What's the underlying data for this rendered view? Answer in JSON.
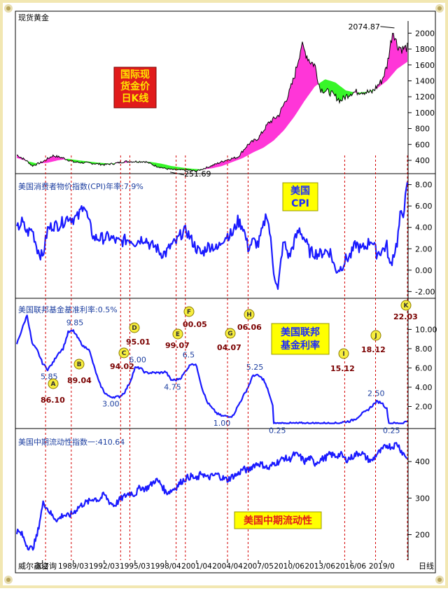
{
  "colors": {
    "background": "#ffffff",
    "price_line": "#000000",
    "above_fill": "#ff2bd6",
    "below_fill": "#2cf51c",
    "series_line": "#1a1aff",
    "vline": "#d40000",
    "marker_fill": "#f7ee3e",
    "annotation_red": "#7a0000",
    "annotation_blue": "#1d3fa0",
    "box_red_bg": "#e11b1b",
    "box_red_text": "#ffe600",
    "box_yellow_bg": "#ffff00",
    "box_yellow_text": "#1a2aff",
    "frame_yellow": "#f2e7b2"
  },
  "header": {
    "title": "现货黄金"
  },
  "footer": {
    "source": "威尔鑫咨询",
    "interval": "日线"
  },
  "chart_data": [
    {
      "type": "line",
      "title": "",
      "legend_box": "国际现货金价日K线",
      "legend_box_lines": [
        "国际现",
        "货金价",
        "日K线"
      ],
      "ylim": [
        250,
        2100
      ],
      "yticks": [
        400,
        600,
        800,
        1000,
        1200,
        1400,
        1600,
        1800,
        2000
      ],
      "series": [
        {
          "x": [
            1984,
            1985,
            1985.5,
            1986.5,
            1987.5,
            1988.5,
            1989.5,
            1990.5,
            1991.5,
            1992.5,
            1993.5,
            1994.5,
            1995.5,
            1996.5,
            1997.5,
            1998.5,
            1999.5,
            2000.5,
            2001.5,
            2002.5,
            2003.5,
            2004.5,
            2005.5,
            2006.5,
            2007.5,
            2008.5,
            2009.5,
            2010.5,
            2011.0,
            2011.7,
            2012.5,
            2013.0,
            2013.5,
            2014.5,
            2015.5,
            2016.5,
            2017.5,
            2018.5,
            2019.5,
            2020.0,
            2020.6,
            2021.0,
            2021.5,
            2022.0
          ],
          "y": [
            470,
            390,
            330,
            380,
            460,
            430,
            380,
            370,
            360,
            345,
            360,
            385,
            385,
            385,
            330,
            295,
            278,
            280,
            265,
            310,
            360,
            410,
            440,
            600,
            680,
            870,
            970,
            1250,
            1450,
            1850,
            1650,
            1600,
            1300,
            1250,
            1150,
            1250,
            1270,
            1250,
            1400,
            1580,
            2050,
            1850,
            1800,
            1820
          ]
        },
        {
          "name": "",
          "x": [
            1984,
            1985,
            1986,
            1987,
            1988,
            1989,
            1990,
            1991,
            1992,
            1993,
            1994,
            1995,
            1996,
            1997,
            1998,
            1999,
            2000,
            2001,
            2002,
            2003,
            2004,
            2005,
            2006,
            2007,
            2008,
            2009,
            2010,
            2011,
            2012,
            2013,
            2014,
            2015,
            2016,
            2017,
            2018,
            2019,
            2020,
            2021,
            2022
          ],
          "y": [
            430,
            390,
            360,
            370,
            400,
            420,
            400,
            385,
            370,
            360,
            365,
            375,
            385,
            380,
            360,
            330,
            310,
            295,
            285,
            300,
            330,
            380,
            430,
            500,
            560,
            650,
            780,
            950,
            1150,
            1330,
            1420,
            1380,
            1280,
            1250,
            1260,
            1300,
            1400,
            1550,
            1640
          ]
        }
      ],
      "annotations": [
        {
          "label": "2074.87",
          "x": 2020.6,
          "y": 2074.87
        },
        {
          "label": "251.69",
          "x": 1999.6,
          "y": 251.69
        }
      ]
    },
    {
      "type": "line",
      "title": "美国消费者物价指数(CPI)年率:7.9%",
      "legend_box": "美国CPI",
      "legend_box_lines": [
        "美国",
        "CPI"
      ],
      "ylim": [
        -2.5,
        8.5
      ],
      "yticks": [
        -2.0,
        0.0,
        2.0,
        4.0,
        6.0,
        8.0
      ],
      "ytick_labels": [
        "-2.00",
        "0.00",
        "2.00",
        "4.00",
        "6.00",
        "8.00"
      ],
      "series": [
        {
          "x": [
            1984,
            1984.5,
            1985,
            1985.5,
            1986,
            1986.5,
            1987,
            1987.5,
            1988,
            1988.5,
            1989,
            1989.5,
            1990,
            1990.5,
            1991,
            1991.5,
            1992,
            1992.5,
            1993,
            1993.5,
            1994,
            1994.5,
            1995,
            1995.5,
            1996,
            1996.5,
            1997,
            1997.5,
            1998,
            1998.5,
            1999,
            1999.5,
            2000,
            2000.5,
            2001,
            2001.5,
            2002,
            2002.5,
            2003,
            2003.5,
            2004,
            2004.5,
            2005,
            2005.5,
            2006,
            2006.5,
            2007,
            2007.5,
            2008,
            2008.3,
            2008.6,
            2009,
            2009.4,
            2009.8,
            2010,
            2010.5,
            2011,
            2011.5,
            2012,
            2012.5,
            2013,
            2013.5,
            2014,
            2014.5,
            2015,
            2015.5,
            2016,
            2016.5,
            2017,
            2017.5,
            2018,
            2018.5,
            2019,
            2019.5,
            2020,
            2020.3,
            2020.6,
            2021,
            2021.3,
            2021.6,
            2022
          ],
          "y": [
            3.8,
            4.5,
            3.5,
            3.8,
            2.0,
            1.2,
            3.8,
            4.2,
            4.2,
            4.5,
            5.0,
            4.8,
            5.0,
            6.3,
            4.5,
            3.0,
            3.0,
            3.0,
            3.1,
            2.8,
            2.6,
            2.8,
            2.9,
            2.6,
            2.9,
            3.0,
            2.3,
            2.2,
            1.6,
            1.6,
            2.3,
            2.6,
            3.4,
            3.7,
            2.8,
            2.0,
            1.5,
            2.2,
            2.3,
            1.9,
            2.9,
            3.3,
            3.4,
            4.6,
            4.1,
            2.1,
            2.7,
            2.4,
            4.1,
            5.4,
            3.6,
            0.0,
            -2.0,
            1.8,
            2.6,
            1.2,
            2.7,
            3.8,
            2.9,
            1.7,
            1.6,
            1.5,
            1.8,
            1.7,
            0.0,
            0.2,
            1.0,
            1.4,
            2.5,
            1.9,
            2.3,
            2.9,
            1.6,
            1.8,
            2.3,
            0.3,
            1.3,
            2.6,
            5.0,
            5.4,
            7.9
          ]
        }
      ]
    },
    {
      "type": "line",
      "title": "美国联邦基金基准利率:0.5%",
      "legend_box": "美国联邦基金利率",
      "legend_box_lines": [
        "美国联邦",
        "基金利率"
      ],
      "ylim": [
        0,
        12.5
      ],
      "yticks": [
        2.0,
        4.0,
        6.0,
        8.0,
        10.0
      ],
      "ytick_labels": [
        "2.00",
        "4.00",
        "6.00",
        "8.00",
        "10.00"
      ],
      "series": [
        {
          "x": [
            1984,
            1984.6,
            1985,
            1985.5,
            1986,
            1986.5,
            1987,
            1987.5,
            1988,
            1988.5,
            1989.0,
            1989.5,
            1990,
            1990.5,
            1991,
            1991.5,
            1992,
            1992.5,
            1993,
            1993.5,
            1994,
            1994.5,
            1995.0,
            1995.5,
            1996,
            1996.5,
            1997,
            1997.5,
            1998,
            1998.5,
            1999,
            1999.5,
            2000,
            2000.5,
            2001,
            2001.5,
            2002,
            2002.5,
            2003,
            2003.5,
            2004,
            2004.5,
            2005,
            2005.5,
            2006.5,
            2007,
            2007.5,
            2008,
            2008.5,
            2008.9,
            2009,
            2010,
            2011,
            2012,
            2013,
            2014,
            2015,
            2015.9,
            2016.5,
            2017,
            2017.5,
            2018,
            2018.5,
            2019,
            2019.5,
            2020.0,
            2020.2,
            2021,
            2021.5,
            2022
          ],
          "y": [
            8.5,
            10.3,
            11.5,
            8.5,
            7.8,
            6.5,
            5.85,
            6.5,
            7.5,
            8.0,
            9.7,
            9.85,
            9.0,
            8.2,
            8.0,
            6.2,
            4.5,
            3.5,
            3.0,
            3.0,
            3.0,
            3.5,
            4.5,
            6.0,
            6.0,
            5.5,
            5.5,
            5.5,
            5.5,
            5.6,
            4.75,
            4.75,
            5.0,
            5.8,
            6.5,
            6.2,
            4.0,
            2.5,
            1.8,
            1.25,
            1.0,
            1.0,
            1.0,
            2.0,
            4.0,
            5.25,
            5.2,
            4.8,
            3.5,
            2.0,
            0.25,
            0.25,
            0.25,
            0.25,
            0.25,
            0.25,
            0.25,
            0.4,
            0.5,
            0.75,
            1.2,
            1.5,
            2.0,
            2.5,
            2.4,
            1.75,
            0.25,
            0.25,
            0.25,
            0.5
          ]
        }
      ],
      "annotations": [
        {
          "label": "9.85",
          "x": 1989.5,
          "y": 9.85
        },
        {
          "label": "5.85",
          "x": 1987.0,
          "y": 5.85
        },
        {
          "label": "3.00",
          "x": 1993.0,
          "y": 3.0
        },
        {
          "label": "6.00",
          "x": 1995.6,
          "y": 6.0
        },
        {
          "label": "4.75",
          "x": 1999.0,
          "y": 4.75
        },
        {
          "label": "6.5",
          "x": 2000.8,
          "y": 6.5
        },
        {
          "label": "1.00",
          "x": 2003.8,
          "y": 1.0
        },
        {
          "label": "5.25",
          "x": 2007.0,
          "y": 5.25
        },
        {
          "label": "0.25",
          "x": 2009.2,
          "y": 0.25
        },
        {
          "label": "2.50",
          "x": 2018.8,
          "y": 2.5
        },
        {
          "label": "0.25",
          "x": 2020.3,
          "y": 0.25
        }
      ]
    },
    {
      "type": "line",
      "title": "美国中期流动性指数一:410.64",
      "legend_box": "美国中期流动性",
      "ylim": [
        130,
        475
      ],
      "yticks": [
        200,
        300,
        400
      ],
      "series": [
        {
          "x": [
            1984,
            1984.5,
            1985,
            1985.5,
            1986,
            1986.3,
            1986.6,
            1987,
            1987.5,
            1988,
            1988.5,
            1989,
            1989.5,
            1990,
            1990.5,
            1991,
            1991.5,
            1992,
            1992.5,
            1993,
            1993.5,
            1994,
            1994.5,
            1995,
            1995.5,
            1996,
            1996.5,
            1997,
            1997.5,
            1998,
            1998.5,
            1999,
            1999.5,
            2000,
            2000.5,
            2001,
            2001.5,
            2002,
            2002.5,
            2003,
            2003.5,
            2004,
            2004.5,
            2005,
            2005.5,
            2006,
            2006.5,
            2007,
            2007.5,
            2008,
            2008.5,
            2009,
            2009.5,
            2010,
            2010.5,
            2011,
            2011.5,
            2012,
            2012.5,
            2013,
            2013.5,
            2014,
            2014.5,
            2015,
            2015.5,
            2016,
            2016.5,
            2017,
            2017.5,
            2018,
            2018.5,
            2019,
            2019.5,
            2020,
            2020.5,
            2021,
            2021.5,
            2022
          ],
          "y": [
            210,
            200,
            170,
            160,
            200,
            250,
            290,
            270,
            250,
            240,
            255,
            250,
            260,
            275,
            285,
            290,
            300,
            295,
            310,
            290,
            280,
            295,
            305,
            315,
            310,
            330,
            325,
            335,
            350,
            340,
            315,
            320,
            330,
            345,
            355,
            360,
            350,
            370,
            355,
            360,
            365,
            355,
            350,
            360,
            365,
            380,
            375,
            390,
            395,
            390,
            380,
            395,
            400,
            410,
            405,
            420,
            415,
            400,
            410,
            395,
            405,
            410,
            420,
            415,
            420,
            405,
            410,
            420,
            425,
            410,
            400,
            420,
            430,
            445,
            440,
            450,
            425,
            410
          ]
        }
      ]
    }
  ],
  "x_axis": {
    "tick_labels": [
      "/02",
      "1989/03",
      "1992/03",
      "1995/03",
      "1998/04",
      "2001/04",
      "2004/04",
      "2007/05",
      "2010/06",
      "2013/06",
      "2016/06",
      "2019/0"
    ],
    "tick_x": [
      1986.5,
      1989.5,
      1992.5,
      1995.5,
      1998.5,
      2001.5,
      2004.5,
      2007.5,
      2010.5,
      2013.5,
      2016.5,
      2019.5
    ],
    "range": [
      1984,
      2022
    ]
  },
  "events": [
    {
      "marker": "A",
      "date": "86.10",
      "x": 1986.8
    },
    {
      "marker": "B",
      "date": "89.04",
      "x": 1989.3
    },
    {
      "marker": "C",
      "date": "94.02",
      "x": 1994.1
    },
    {
      "marker": "D",
      "date": "95.01",
      "x": 1995.0
    },
    {
      "marker": "E",
      "date": "99.07",
      "x": 1999.5
    },
    {
      "marker": "F",
      "date": "00.05",
      "x": 2000.4
    },
    {
      "marker": "G",
      "date": "04.07",
      "x": 2004.5
    },
    {
      "marker": "H",
      "date": "06.06",
      "x": 2006.5
    },
    {
      "marker": "I",
      "date": "15.12",
      "x": 2015.9
    },
    {
      "marker": "J",
      "date": "18.12",
      "x": 2018.9
    },
    {
      "marker": "K",
      "date": "22.03",
      "x": 2022.0
    }
  ]
}
